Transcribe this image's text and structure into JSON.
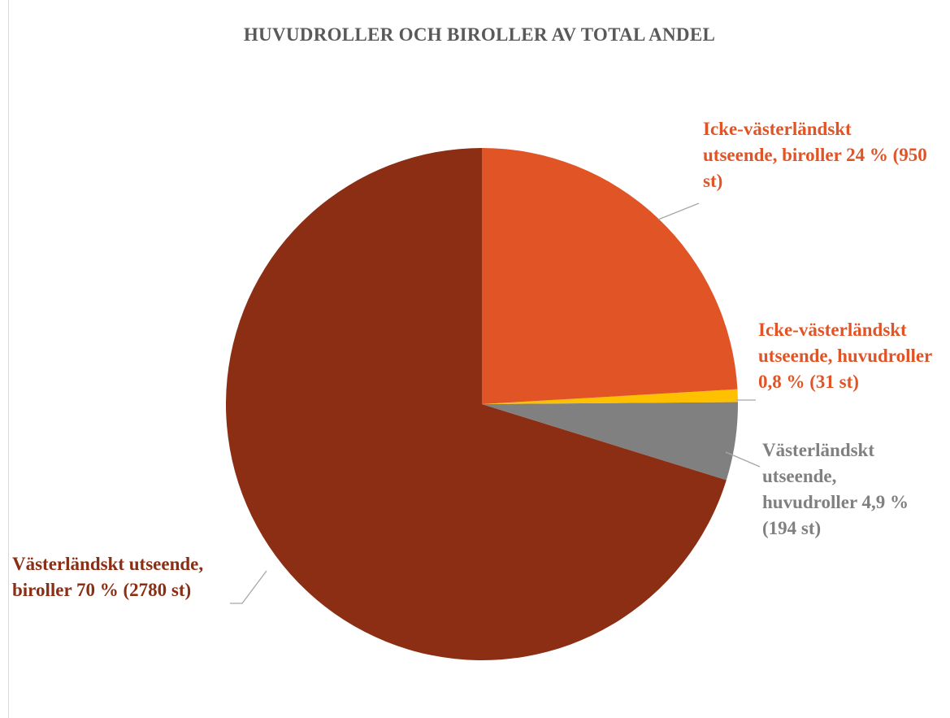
{
  "chart_data": {
    "type": "pie",
    "title": "HUVUDROLLER OCH BIROLLER AV TOTAL ANDEL",
    "categories": [
      "Icke-västerländskt utseende, biroller",
      "Icke-västerländskt utseende, huvudroller",
      "Västerländskt utseende, huvudroller",
      "Västerländskt utseende, biroller"
    ],
    "values": [
      24,
      0.8,
      4.9,
      70
    ],
    "value_labels": [
      "24 % (950 st)",
      "0,8 % (31 st)",
      "4,9 % (194 st)",
      "70 % (2780 st)"
    ],
    "colors": [
      "#e05426",
      "#ffc000",
      "#808080",
      "#8b2e14"
    ],
    "label_colors": [
      "#e05426",
      "#e05426",
      "#808080",
      "#8b2e14"
    ]
  }
}
